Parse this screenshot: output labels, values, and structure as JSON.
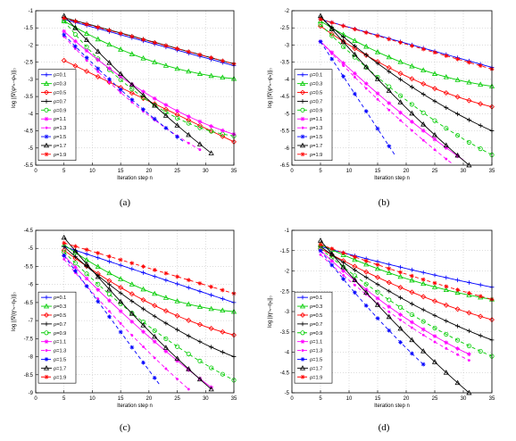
{
  "legend_labels": [
    "ρ=0.1",
    "ρ=0.3",
    "ρ=0.5",
    "ρ=0.7",
    "ρ=0.9",
    "ρ=1.1",
    "ρ=1.3",
    "ρ=1.5",
    "ρ=1.7",
    "ρ=1.9"
  ],
  "series_styles": [
    {
      "color": "#0000ff",
      "dash": "",
      "marker": "plus"
    },
    {
      "color": "#00cc00",
      "dash": "",
      "marker": "triangle"
    },
    {
      "color": "#ff0000",
      "dash": "",
      "marker": "diamond"
    },
    {
      "color": "#000000",
      "dash": "",
      "marker": "plus"
    },
    {
      "color": "#00cc00",
      "dash": "4,3",
      "marker": "circle"
    },
    {
      "color": "#ff00ff",
      "dash": "",
      "marker": "star"
    },
    {
      "color": "#ff00ff",
      "dash": "4,3",
      "marker": "point"
    },
    {
      "color": "#0000ff",
      "dash": "4,3",
      "marker": "star"
    },
    {
      "color": "#000000",
      "dash": "",
      "marker": "triangle"
    },
    {
      "color": "#ff0000",
      "dash": "4,3",
      "marker": "star"
    }
  ],
  "chart_data": [
    {
      "type": "line",
      "caption": "(a)",
      "xlabel": "Iteration step n",
      "ylabel": "log ||∇(φⁿₕ−φₕ)||₀",
      "xlim": [
        0,
        35
      ],
      "ylim": [
        -5.5,
        -1
      ],
      "xticks": [
        0,
        5,
        10,
        15,
        20,
        25,
        30,
        35
      ],
      "xtick_labels": [
        "0",
        "5",
        "10",
        "15",
        "20",
        "25",
        "30",
        "35"
      ],
      "yticks": [
        -5.5,
        -5,
        -4.5,
        -4,
        -3.5,
        -3,
        -2.5,
        -2,
        -1.5,
        -1
      ],
      "ytick_labels": [
        "-5.5",
        "-5",
        "-4.5",
        "-4",
        "-3.5",
        "-3",
        "-2.5",
        "-2",
        "-1.5",
        "-1"
      ],
      "series": [
        {
          "name": "ρ=0.1",
          "n_start": 5,
          "n_end": 35,
          "y_start": -1.25,
          "y_end": -2.6,
          "curve": 0
        },
        {
          "name": "ρ=0.3",
          "n_start": 5,
          "n_end": 35,
          "y_start": -1.3,
          "y_end": -2.98,
          "curve": 0.45
        },
        {
          "name": "ρ=0.5",
          "n_start": 5,
          "n_end": 35,
          "y_start": -2.45,
          "y_end": -4.82,
          "curve": 0
        },
        {
          "name": "ρ=0.7",
          "n_start": 5,
          "n_end": 35,
          "y_start": -1.2,
          "y_end": -2.55,
          "curve": 0
        },
        {
          "name": "ρ=0.9",
          "n_start": 5,
          "n_end": 35,
          "y_start": -1.3,
          "y_end": -4.65,
          "curve": 0.5
        },
        {
          "name": "ρ=1.1",
          "n_start": 5,
          "n_end": 35,
          "y_start": -1.6,
          "y_end": -4.6,
          "curve": 0.3
        },
        {
          "name": "ρ=1.3",
          "n_start": 5,
          "n_end": 29,
          "y_start": -1.75,
          "y_end": -5.05,
          "curve": 0.2
        },
        {
          "name": "ρ=1.5",
          "n_start": 5,
          "n_end": 26,
          "y_start": -1.7,
          "y_end": -4.8,
          "curve": 0.1
        },
        {
          "name": "ρ=1.7",
          "n_start": 5,
          "n_end": 31,
          "y_start": -1.15,
          "y_end": -5.15,
          "curve": 0.1
        },
        {
          "name": "ρ=1.9",
          "n_start": 5,
          "n_end": 35,
          "y_start": -1.22,
          "y_end": -2.55,
          "curve": 0
        }
      ]
    },
    {
      "type": "line",
      "caption": "(b)",
      "xlabel": "Iteration step n",
      "ylabel": "log ||∇(φⁿₕ−φₕ)||₀",
      "xlim": [
        0,
        35
      ],
      "ylim": [
        -6.5,
        -2
      ],
      "xticks": [
        0,
        5,
        10,
        15,
        20,
        25,
        30,
        35
      ],
      "xtick_labels": [
        "0",
        "5",
        "10",
        "15",
        "20",
        "25",
        "30",
        "35"
      ],
      "yticks": [
        -6.5,
        -6,
        -5.5,
        -5,
        -4.5,
        -4,
        -3.5,
        -3,
        -2.5,
        -2
      ],
      "ytick_labels": [
        "-6.5",
        "-6",
        "-5.5",
        "-5",
        "-4.5",
        "-4",
        "-3.5",
        "-3",
        "-2.5",
        "-2"
      ],
      "series": [
        {
          "name": "ρ=0.1",
          "n_start": 5,
          "n_end": 35,
          "y_start": -2.25,
          "y_end": -3.65,
          "curve": 0
        },
        {
          "name": "ρ=0.3",
          "n_start": 5,
          "n_end": 35,
          "y_start": -2.3,
          "y_end": -4.2,
          "curve": 0.4
        },
        {
          "name": "ρ=0.5",
          "n_start": 5,
          "n_end": 35,
          "y_start": -2.45,
          "y_end": -4.8,
          "curve": 0.3
        },
        {
          "name": "ρ=0.7",
          "n_start": 5,
          "n_end": 35,
          "y_start": -2.2,
          "y_end": -5.5,
          "curve": 0.2
        },
        {
          "name": "ρ=0.9",
          "n_start": 5,
          "n_end": 35,
          "y_start": -2.4,
          "y_end": -6.2,
          "curve": 0.2
        },
        {
          "name": "ρ=1.1",
          "n_start": 5,
          "n_end": 30,
          "y_start": -2.9,
          "y_end": -6.35,
          "curve": 0.1
        },
        {
          "name": "ρ=1.3",
          "n_start": 5,
          "n_end": 28,
          "y_start": -2.9,
          "y_end": -6.45,
          "curve": 0.1
        },
        {
          "name": "ρ=1.5",
          "n_start": 5,
          "n_end": 18,
          "y_start": -2.9,
          "y_end": -6.2,
          "curve": 0
        },
        {
          "name": "ρ=1.7",
          "n_start": 5,
          "n_end": 31,
          "y_start": -2.15,
          "y_end": -6.5,
          "curve": 0.1
        },
        {
          "name": "ρ=1.9",
          "n_start": 5,
          "n_end": 35,
          "y_start": -2.25,
          "y_end": -3.7,
          "curve": 0
        }
      ]
    },
    {
      "type": "line",
      "caption": "(c)",
      "xlabel": "Iteration step n",
      "ylabel": "log ||∇(ηⁿₕ−ηₕ)||₀",
      "xlim": [
        0,
        35
      ],
      "ylim": [
        -9,
        -4.5
      ],
      "xticks": [
        0,
        5,
        10,
        15,
        20,
        25,
        30,
        35
      ],
      "xtick_labels": [
        "0",
        "5",
        "10",
        "15",
        "20",
        "25",
        "30",
        "35"
      ],
      "yticks": [
        -9,
        -8.5,
        -8,
        -7.5,
        -7,
        -6.5,
        -6,
        -5.5,
        -5,
        -4.5
      ],
      "ytick_labels": [
        "-9",
        "-8.5",
        "-8",
        "-7.5",
        "-7",
        "-6.5",
        "-6",
        "-5.5",
        "-5",
        "-4.5"
      ],
      "series": [
        {
          "name": "ρ=0.1",
          "n_start": 5,
          "n_end": 35,
          "y_start": -4.95,
          "y_end": -6.5,
          "curve": 0
        },
        {
          "name": "ρ=0.3",
          "n_start": 5,
          "n_end": 35,
          "y_start": -4.9,
          "y_end": -6.75,
          "curve": 0.5
        },
        {
          "name": "ρ=0.5",
          "n_start": 5,
          "n_end": 35,
          "y_start": -5.05,
          "y_end": -7.4,
          "curve": 0.3
        },
        {
          "name": "ρ=0.7",
          "n_start": 5,
          "n_end": 35,
          "y_start": -4.95,
          "y_end": -8.0,
          "curve": 0.25
        },
        {
          "name": "ρ=0.9",
          "n_start": 5,
          "n_end": 35,
          "y_start": -5.1,
          "y_end": -8.65,
          "curve": 0.2
        },
        {
          "name": "ρ=1.1",
          "n_start": 5,
          "n_end": 31,
          "y_start": -5.2,
          "y_end": -8.85,
          "curve": 0.1
        },
        {
          "name": "ρ=1.3",
          "n_start": 5,
          "n_end": 27,
          "y_start": -5.3,
          "y_end": -8.9,
          "curve": 0.1
        },
        {
          "name": "ρ=1.5",
          "n_start": 5,
          "n_end": 22,
          "y_start": -5.2,
          "y_end": -8.8,
          "curve": 0
        },
        {
          "name": "ρ=1.7",
          "n_start": 5,
          "n_end": 31,
          "y_start": -4.7,
          "y_end": -8.9,
          "curve": 0.1
        },
        {
          "name": "ρ=1.9",
          "n_start": 5,
          "n_end": 35,
          "y_start": -4.85,
          "y_end": -6.25,
          "curve": 0
        }
      ]
    },
    {
      "type": "line",
      "caption": "(d)",
      "xlabel": "Iteration step n",
      "ylabel": "log ||ηⁿₕ−ηₕ||₀",
      "xlim": [
        0,
        35
      ],
      "ylim": [
        -5,
        -1
      ],
      "xticks": [
        0,
        5,
        10,
        15,
        20,
        25,
        30,
        35
      ],
      "xtick_labels": [
        "0",
        "5",
        "10",
        "15",
        "20",
        "25",
        "30",
        "35"
      ],
      "yticks": [
        -5,
        -4.5,
        -4,
        -3.5,
        -3,
        -2.5,
        -2,
        -1.5,
        -1
      ],
      "ytick_labels": [
        "-5",
        "-4.5",
        "-4",
        "-3.5",
        "-3",
        "-2.5",
        "-2",
        "-1.5",
        "-1"
      ],
      "series": [
        {
          "name": "ρ=0.1",
          "n_start": 5,
          "n_end": 35,
          "y_start": -1.4,
          "y_end": -2.4,
          "curve": 0.1
        },
        {
          "name": "ρ=0.3",
          "n_start": 5,
          "n_end": 35,
          "y_start": -1.35,
          "y_end": -2.7,
          "curve": 0.3
        },
        {
          "name": "ρ=0.5",
          "n_start": 5,
          "n_end": 35,
          "y_start": -1.45,
          "y_end": -3.2,
          "curve": 0.2
        },
        {
          "name": "ρ=0.7",
          "n_start": 5,
          "n_end": 35,
          "y_start": -1.4,
          "y_end": -3.7,
          "curve": 0.2
        },
        {
          "name": "ρ=0.9",
          "n_start": 5,
          "n_end": 35,
          "y_start": -1.45,
          "y_end": -4.1,
          "curve": 0.2
        },
        {
          "name": "ρ=1.1",
          "n_start": 5,
          "n_end": 31,
          "y_start": -1.5,
          "y_end": -4.05,
          "curve": 0.2
        },
        {
          "name": "ρ=1.3",
          "n_start": 5,
          "n_end": 31,
          "y_start": -1.6,
          "y_end": -4.2,
          "curve": 0.2
        },
        {
          "name": "ρ=1.5",
          "n_start": 5,
          "n_end": 23,
          "y_start": -1.5,
          "y_end": -4.3,
          "curve": 0.1
        },
        {
          "name": "ρ=1.7",
          "n_start": 5,
          "n_end": 31,
          "y_start": -1.25,
          "y_end": -5.0,
          "curve": 0.1
        },
        {
          "name": "ρ=1.9",
          "n_start": 5,
          "n_end": 35,
          "y_start": -1.35,
          "y_end": -2.7,
          "curve": 0.1
        }
      ]
    }
  ]
}
